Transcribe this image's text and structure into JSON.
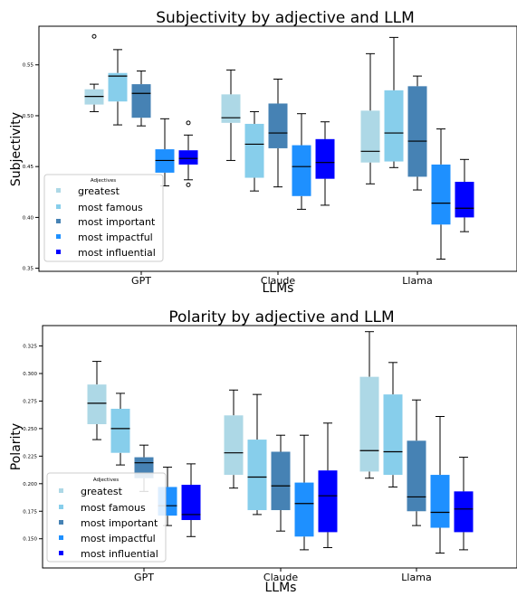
{
  "chart_data": [
    {
      "type": "box",
      "title": "Subjectivity by adjective and LLM",
      "xlabel": "LLMs",
      "ylabel": "Subjectivity",
      "ylim": [
        0.347,
        0.588
      ],
      "yticks": [
        0.35,
        0.4,
        0.45,
        0.5,
        0.55
      ],
      "ytick_labels": [
        "0.35",
        "0.40",
        "0.45",
        "0.50",
        "0.55"
      ],
      "categories": [
        "GPT",
        "Claude",
        "Llama"
      ],
      "grid": false,
      "legend": {
        "title": "Adjectives",
        "position": "lower-left"
      },
      "series": [
        {
          "name": "greatest",
          "color": "#add8e6",
          "boxes": [
            {
              "min": 0.504,
              "q1": 0.511,
              "median": 0.519,
              "q3": 0.526,
              "max": 0.531,
              "fliers": [
                0.578
              ]
            },
            {
              "min": 0.456,
              "q1": 0.493,
              "median": 0.498,
              "q3": 0.521,
              "max": 0.545,
              "fliers": []
            },
            {
              "min": 0.433,
              "q1": 0.454,
              "median": 0.465,
              "q3": 0.505,
              "max": 0.561,
              "fliers": []
            }
          ]
        },
        {
          "name": "most famous",
          "color": "#87ceeb",
          "boxes": [
            {
              "min": 0.491,
              "q1": 0.514,
              "median": 0.539,
              "q3": 0.542,
              "max": 0.565,
              "fliers": []
            },
            {
              "min": 0.426,
              "q1": 0.439,
              "median": 0.472,
              "q3": 0.492,
              "max": 0.504,
              "fliers": []
            },
            {
              "min": 0.449,
              "q1": 0.455,
              "median": 0.483,
              "q3": 0.525,
              "max": 0.577,
              "fliers": []
            }
          ]
        },
        {
          "name": "most important",
          "color": "#4682b4",
          "boxes": [
            {
              "min": 0.49,
              "q1": 0.498,
              "median": 0.522,
              "q3": 0.531,
              "max": 0.544,
              "fliers": []
            },
            {
              "min": 0.43,
              "q1": 0.468,
              "median": 0.483,
              "q3": 0.512,
              "max": 0.536,
              "fliers": []
            },
            {
              "min": 0.427,
              "q1": 0.44,
              "median": 0.475,
              "q3": 0.529,
              "max": 0.539,
              "fliers": []
            }
          ]
        },
        {
          "name": "most impactful",
          "color": "#1e90ff",
          "boxes": [
            {
              "min": 0.431,
              "q1": 0.444,
              "median": 0.456,
              "q3": 0.467,
              "max": 0.497,
              "fliers": []
            },
            {
              "min": 0.408,
              "q1": 0.421,
              "median": 0.45,
              "q3": 0.471,
              "max": 0.502,
              "fliers": []
            },
            {
              "min": 0.359,
              "q1": 0.393,
              "median": 0.414,
              "q3": 0.452,
              "max": 0.487,
              "fliers": []
            }
          ]
        },
        {
          "name": "most influential",
          "color": "#0000ff",
          "boxes": [
            {
              "min": 0.437,
              "q1": 0.452,
              "median": 0.458,
              "q3": 0.466,
              "max": 0.481,
              "fliers": [
                0.432,
                0.493
              ]
            },
            {
              "min": 0.412,
              "q1": 0.438,
              "median": 0.454,
              "q3": 0.477,
              "max": 0.494,
              "fliers": []
            },
            {
              "min": 0.386,
              "q1": 0.4,
              "median": 0.409,
              "q3": 0.435,
              "max": 0.457,
              "fliers": []
            }
          ]
        }
      ]
    },
    {
      "type": "box",
      "title": "Polarity by adjective and LLM",
      "xlabel": "LLMs",
      "ylabel": "Polarity",
      "ylim": [
        0.1235,
        0.3435
      ],
      "yticks": [
        0.15,
        0.175,
        0.2,
        0.225,
        0.25,
        0.275,
        0.3,
        0.325
      ],
      "ytick_labels": [
        "0.150",
        "0.175",
        "0.200",
        "0.225",
        "0.250",
        "0.275",
        "0.300",
        "0.325"
      ],
      "categories": [
        "GPT",
        "Claude",
        "Llama"
      ],
      "grid": false,
      "legend": {
        "title": "Adjectives",
        "position": "lower-left"
      },
      "series": [
        {
          "name": "greatest",
          "color": "#add8e6",
          "boxes": [
            {
              "min": 0.24,
              "q1": 0.254,
              "median": 0.273,
              "q3": 0.29,
              "max": 0.311,
              "fliers": []
            },
            {
              "min": 0.196,
              "q1": 0.208,
              "median": 0.228,
              "q3": 0.262,
              "max": 0.285,
              "fliers": []
            },
            {
              "min": 0.205,
              "q1": 0.211,
              "median": 0.23,
              "q3": 0.297,
              "max": 0.338,
              "fliers": []
            }
          ]
        },
        {
          "name": "most famous",
          "color": "#87ceeb",
          "boxes": [
            {
              "min": 0.217,
              "q1": 0.228,
              "median": 0.25,
              "q3": 0.268,
              "max": 0.282,
              "fliers": []
            },
            {
              "min": 0.172,
              "q1": 0.176,
              "median": 0.206,
              "q3": 0.24,
              "max": 0.281,
              "fliers": []
            },
            {
              "min": 0.197,
              "q1": 0.208,
              "median": 0.229,
              "q3": 0.281,
              "max": 0.31,
              "fliers": []
            }
          ]
        },
        {
          "name": "most important",
          "color": "#4682b4",
          "boxes": [
            {
              "min": 0.193,
              "q1": 0.205,
              "median": 0.219,
              "q3": 0.224,
              "max": 0.235,
              "fliers": []
            },
            {
              "min": 0.157,
              "q1": 0.176,
              "median": 0.198,
              "q3": 0.229,
              "max": 0.244,
              "fliers": []
            },
            {
              "min": 0.162,
              "q1": 0.175,
              "median": 0.188,
              "q3": 0.239,
              "max": 0.276,
              "fliers": []
            }
          ]
        },
        {
          "name": "most impactful",
          "color": "#1e90ff",
          "boxes": [
            {
              "min": 0.162,
              "q1": 0.171,
              "median": 0.18,
              "q3": 0.197,
              "max": 0.215,
              "fliers": []
            },
            {
              "min": 0.14,
              "q1": 0.152,
              "median": 0.182,
              "q3": 0.201,
              "max": 0.244,
              "fliers": []
            },
            {
              "min": 0.137,
              "q1": 0.16,
              "median": 0.174,
              "q3": 0.208,
              "max": 0.261,
              "fliers": []
            }
          ]
        },
        {
          "name": "most influential",
          "color": "#0000ff",
          "boxes": [
            {
              "min": 0.152,
              "q1": 0.167,
              "median": 0.172,
              "q3": 0.199,
              "max": 0.218,
              "fliers": []
            },
            {
              "min": 0.142,
              "q1": 0.156,
              "median": 0.189,
              "q3": 0.212,
              "max": 0.255,
              "fliers": []
            },
            {
              "min": 0.14,
              "q1": 0.156,
              "median": 0.177,
              "q3": 0.193,
              "max": 0.224,
              "fliers": []
            }
          ]
        }
      ]
    }
  ]
}
